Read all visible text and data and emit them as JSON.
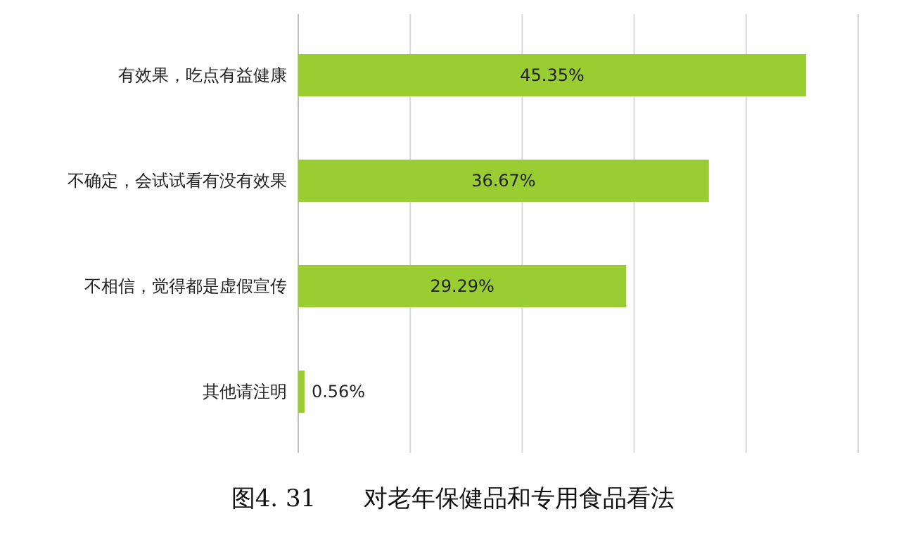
{
  "chart_data": {
    "type": "bar",
    "orientation": "horizontal",
    "title": "图4. 31　　对老年保健品和专用食品看法",
    "categories": [
      "有效果，吃点有益健康",
      "不确定，会试试看有没有效果",
      "不相信，觉得都是虚假宣传",
      "其他请注明"
    ],
    "values": [
      45.35,
      36.67,
      29.29,
      0.56
    ],
    "value_labels": [
      "45.35%",
      "36.67%",
      "29.29%",
      "0.56%"
    ],
    "color": "#9acd32",
    "xlim": [
      0,
      50
    ],
    "xticks": [
      {
        "value": 0,
        "label": null
      },
      {
        "value": 10,
        "label": null
      },
      {
        "value": 20,
        "label": null
      },
      {
        "value": 30,
        "label": null
      },
      {
        "value": 40,
        "label": null
      },
      {
        "value": 50,
        "label": null
      }
    ],
    "grid": "x",
    "tick_labels": "y"
  }
}
